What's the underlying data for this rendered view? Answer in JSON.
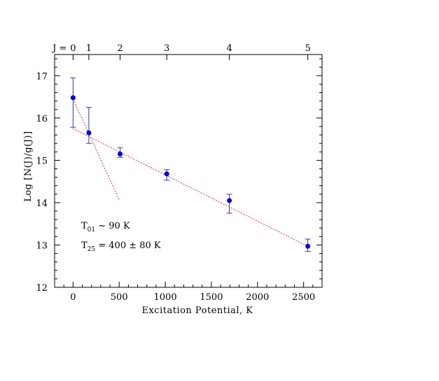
{
  "chart_data": {
    "type": "scatter",
    "title": "",
    "xlabel": "Excitation Potential, K",
    "ylabel": "Log [N(J)/g(J)]",
    "xlim": [
      -200,
      2700
    ],
    "ylim": [
      12,
      17.5
    ],
    "x_ticks": [
      0,
      500,
      1000,
      1500,
      2000,
      2500
    ],
    "y_ticks": [
      12,
      13,
      14,
      15,
      16,
      17
    ],
    "top_axis": {
      "label_prefix": "J =",
      "levels": [
        {
          "j": "0",
          "x": 0
        },
        {
          "j": "1",
          "x": 171
        },
        {
          "j": "2",
          "x": 510
        },
        {
          "j": "3",
          "x": 1016
        },
        {
          "j": "4",
          "x": 1695
        },
        {
          "j": "5",
          "x": 2545
        }
      ]
    },
    "series": [
      {
        "points": [
          {
            "x": 0,
            "y": 16.48,
            "err_lo": 0.7,
            "err_hi": 0.47
          },
          {
            "x": 171,
            "y": 15.65,
            "err_lo": 0.25,
            "err_hi": 0.6
          },
          {
            "x": 510,
            "y": 15.15,
            "err_lo": 0.08,
            "err_hi": 0.15
          },
          {
            "x": 1016,
            "y": 14.68,
            "err_lo": 0.15,
            "err_hi": 0.1
          },
          {
            "x": 1695,
            "y": 14.05,
            "err_lo": 0.3,
            "err_hi": 0.15
          },
          {
            "x": 2545,
            "y": 12.97,
            "err_lo": 0.12,
            "err_hi": 0.17
          }
        ]
      }
    ],
    "fit_lines": [
      {
        "x": [
          0,
          500
        ],
        "y": [
          16.45,
          14.07
        ]
      },
      {
        "x": [
          0,
          2545
        ],
        "y": [
          15.75,
          12.97
        ]
      }
    ],
    "annotations": [
      {
        "pre": "T",
        "sub": "01",
        "post": " ~  90 K"
      },
      {
        "pre": "T",
        "sub": "25",
        "post": " =  400 ± 80 K"
      }
    ],
    "grid": false,
    "colors": {
      "points": "#0000ee",
      "errorbars": "#3333cc",
      "fit": "#e03030",
      "axes": "#000000"
    }
  }
}
